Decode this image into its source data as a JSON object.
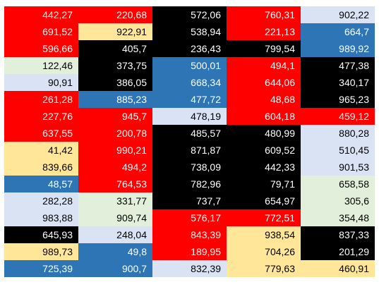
{
  "colors": {
    "red": "#ff0000",
    "black": "#000000",
    "blue": "#2e75b6",
    "lav": "#dae3f3",
    "green": "#e2efda",
    "yellow": "#ffe699"
  },
  "table": {
    "rows": [
      [
        {
          "v": "442,27",
          "c": "red"
        },
        {
          "v": "220,68",
          "c": "red"
        },
        {
          "v": "572,06",
          "c": "black"
        },
        {
          "v": "760,31",
          "c": "red"
        },
        {
          "v": "902,22",
          "c": "lav"
        }
      ],
      [
        {
          "v": "691,52",
          "c": "red"
        },
        {
          "v": "922,91",
          "c": "yellow"
        },
        {
          "v": "538,94",
          "c": "black"
        },
        {
          "v": "221,13",
          "c": "red"
        },
        {
          "v": "664,7",
          "c": "blue"
        }
      ],
      [
        {
          "v": "596,66",
          "c": "red"
        },
        {
          "v": "405,7",
          "c": "black"
        },
        {
          "v": "236,43",
          "c": "black"
        },
        {
          "v": "799,54",
          "c": "black"
        },
        {
          "v": "989,92",
          "c": "blue"
        }
      ],
      [
        {
          "v": "122,46",
          "c": "green"
        },
        {
          "v": "373,75",
          "c": "black"
        },
        {
          "v": "500,01",
          "c": "blue"
        },
        {
          "v": "494,1",
          "c": "red"
        },
        {
          "v": "477,38",
          "c": "black"
        }
      ],
      [
        {
          "v": "90,91",
          "c": "lav"
        },
        {
          "v": "386,05",
          "c": "black"
        },
        {
          "v": "668,34",
          "c": "blue"
        },
        {
          "v": "644,06",
          "c": "red"
        },
        {
          "v": "340,17",
          "c": "black"
        }
      ],
      [
        {
          "v": "261,28",
          "c": "red"
        },
        {
          "v": "885,23",
          "c": "blue"
        },
        {
          "v": "477,72",
          "c": "blue"
        },
        {
          "v": "48,68",
          "c": "red"
        },
        {
          "v": "965,23",
          "c": "black"
        }
      ],
      [
        {
          "v": "227,76",
          "c": "red"
        },
        {
          "v": "945,7",
          "c": "red"
        },
        {
          "v": "478,19",
          "c": "lav"
        },
        {
          "v": "604,18",
          "c": "red"
        },
        {
          "v": "459,12",
          "c": "red"
        }
      ],
      [
        {
          "v": "637,55",
          "c": "red"
        },
        {
          "v": "200,78",
          "c": "red"
        },
        {
          "v": "485,57",
          "c": "black"
        },
        {
          "v": "480,99",
          "c": "black"
        },
        {
          "v": "880,28",
          "c": "lav"
        }
      ],
      [
        {
          "v": "41,42",
          "c": "yellow"
        },
        {
          "v": "990,21",
          "c": "red"
        },
        {
          "v": "871,87",
          "c": "black"
        },
        {
          "v": "609,52",
          "c": "black"
        },
        {
          "v": "510,45",
          "c": "lav"
        }
      ],
      [
        {
          "v": "839,66",
          "c": "yellow"
        },
        {
          "v": "494,2",
          "c": "red"
        },
        {
          "v": "738,09",
          "c": "black"
        },
        {
          "v": "442,33",
          "c": "black"
        },
        {
          "v": "901,53",
          "c": "lav"
        }
      ],
      [
        {
          "v": "48,57",
          "c": "blue"
        },
        {
          "v": "764,53",
          "c": "red"
        },
        {
          "v": "782,96",
          "c": "black"
        },
        {
          "v": "79,71",
          "c": "black"
        },
        {
          "v": "658,58",
          "c": "green"
        }
      ],
      [
        {
          "v": "282,28",
          "c": "lav"
        },
        {
          "v": "331,77",
          "c": "green"
        },
        {
          "v": "737,7",
          "c": "black"
        },
        {
          "v": "654,97",
          "c": "black"
        },
        {
          "v": "305,6",
          "c": "green"
        }
      ],
      [
        {
          "v": "983,88",
          "c": "lav"
        },
        {
          "v": "909,74",
          "c": "green"
        },
        {
          "v": "576,17",
          "c": "red"
        },
        {
          "v": "772,51",
          "c": "red"
        },
        {
          "v": "354,48",
          "c": "green"
        }
      ],
      [
        {
          "v": "645,93",
          "c": "black"
        },
        {
          "v": "248,04",
          "c": "lav"
        },
        {
          "v": "843,39",
          "c": "red"
        },
        {
          "v": "938,54",
          "c": "yellow"
        },
        {
          "v": "837,33",
          "c": "black"
        }
      ],
      [
        {
          "v": "989,73",
          "c": "yellow"
        },
        {
          "v": "49,8",
          "c": "blue"
        },
        {
          "v": "189,95",
          "c": "red"
        },
        {
          "v": "704,26",
          "c": "yellow"
        },
        {
          "v": "201,29",
          "c": "black"
        }
      ],
      [
        {
          "v": "725,39",
          "c": "blue"
        },
        {
          "v": "900,7",
          "c": "blue"
        },
        {
          "v": "832,39",
          "c": "lav"
        },
        {
          "v": "779,63",
          "c": "yellow"
        },
        {
          "v": "460,91",
          "c": "yellow"
        }
      ]
    ]
  }
}
